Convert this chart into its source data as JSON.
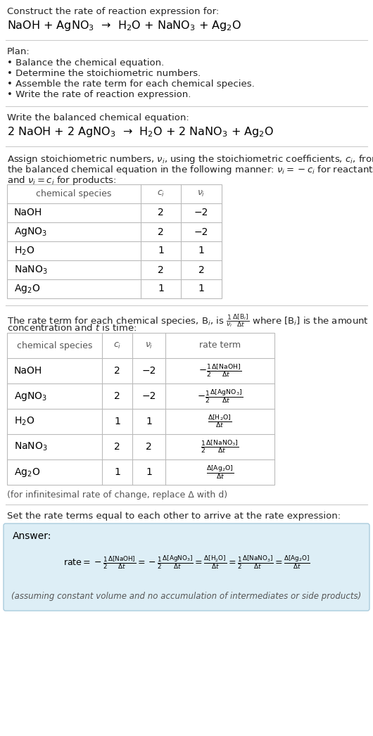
{
  "bg_color": "#ffffff",
  "text_color": "#000000",
  "gray_text": "#666666",
  "light_blue_bg": "#ddeef6",
  "light_blue_border": "#aaccdd",
  "table_border": "#bbbbbb",
  "title_line1": "Construct the rate of reaction expression for:",
  "reaction_unbalanced": "NaOH + AgNO$_3$  →  H$_2$O + NaNO$_3$ + Ag$_2$O",
  "plan_header": "Plan:",
  "plan_items": [
    "• Balance the chemical equation.",
    "• Determine the stoichiometric numbers.",
    "• Assemble the rate term for each chemical species.",
    "• Write the rate of reaction expression."
  ],
  "balanced_header": "Write the balanced chemical equation:",
  "reaction_balanced": "2 NaOH + 2 AgNO$_3$  →  H$_2$O + 2 NaNO$_3$ + Ag$_2$O",
  "stoich_intro_1": "Assign stoichiometric numbers, $\\nu_i$, using the stoichiometric coefficients, $c_i$, from",
  "stoich_intro_2": "the balanced chemical equation in the following manner: $\\nu_i = -c_i$ for reactants",
  "stoich_intro_3": "and $\\nu_i = c_i$ for products:",
  "table1_col_headers": [
    "chemical species",
    "$c_i$",
    "$\\nu_i$"
  ],
  "table1_rows": [
    [
      "NaOH",
      "2",
      "−2"
    ],
    [
      "AgNO$_3$",
      "2",
      "−2"
    ],
    [
      "H$_2$O",
      "1",
      "1"
    ],
    [
      "NaNO$_3$",
      "2",
      "2"
    ],
    [
      "Ag$_2$O",
      "1",
      "1"
    ]
  ],
  "rate_intro_1": "The rate term for each chemical species, B$_i$, is $\\frac{1}{\\nu_i}\\frac{\\Delta[\\mathrm{B}_i]}{\\Delta t}$ where [B$_i$] is the amount",
  "rate_intro_2": "concentration and $t$ is time:",
  "table2_col_headers": [
    "chemical species",
    "$c_i$",
    "$\\nu_i$",
    "rate term"
  ],
  "table2_rows": [
    [
      "NaOH",
      "2",
      "−2",
      "$-\\frac{1}{2}\\frac{\\Delta[\\mathrm{NaOH}]}{\\Delta t}$"
    ],
    [
      "AgNO$_3$",
      "2",
      "−2",
      "$-\\frac{1}{2}\\frac{\\Delta[\\mathrm{AgNO_3}]}{\\Delta t}$"
    ],
    [
      "H$_2$O",
      "1",
      "1",
      "$\\frac{\\Delta[\\mathrm{H_2O}]}{\\Delta t}$"
    ],
    [
      "NaNO$_3$",
      "2",
      "2",
      "$\\frac{1}{2}\\frac{\\Delta[\\mathrm{NaNO_3}]}{\\Delta t}$"
    ],
    [
      "Ag$_2$O",
      "1",
      "1",
      "$\\frac{\\Delta[\\mathrm{Ag_2O}]}{\\Delta t}$"
    ]
  ],
  "infinitesimal_note": "(for infinitesimal rate of change, replace Δ with d)",
  "set_equal_text": "Set the rate terms equal to each other to arrive at the rate expression:",
  "answer_label": "Answer:",
  "rate_expression": "$\\mathrm{rate} = -\\frac{1}{2}\\frac{\\Delta[\\mathrm{NaOH}]}{\\Delta t} = -\\frac{1}{2}\\frac{\\Delta[\\mathrm{AgNO_3}]}{\\Delta t} = \\frac{\\Delta[\\mathrm{H_2O}]}{\\Delta t} = \\frac{1}{2}\\frac{\\Delta[\\mathrm{NaNO_3}]}{\\Delta t} = \\frac{\\Delta[\\mathrm{Ag_2O}]}{\\Delta t}$",
  "constant_volume_note": "(assuming constant volume and no accumulation of intermediates or side products)"
}
